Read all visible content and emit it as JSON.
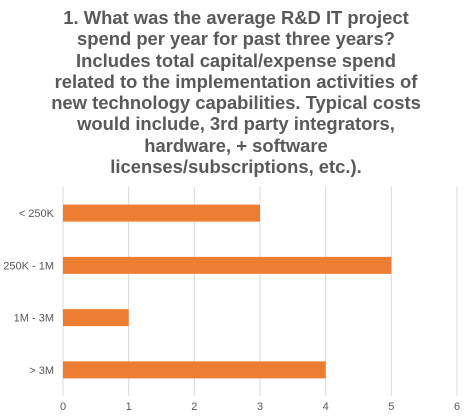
{
  "chart_data": {
    "type": "bar",
    "orientation": "horizontal",
    "title_lines": [
      "1. What was the average R&D IT project",
      "spend per year for past three years?",
      "Includes total capital/expense spend",
      "related to the implementation activities of",
      "new technology capabilities. Typical costs",
      "would include, 3rd party integrators,",
      "hardware, + software",
      "licenses/subscriptions, etc.)."
    ],
    "categories": [
      "< 250K",
      "250K - 1M",
      "1M - 3M",
      "> 3M"
    ],
    "values": [
      3,
      5,
      1,
      4
    ],
    "xlim": [
      0,
      6
    ],
    "x_ticks": [
      "0",
      "1",
      "2",
      "3",
      "4",
      "5",
      "6"
    ],
    "xlabel": "",
    "ylabel": "",
    "grid": "vertical gridlines",
    "legend": "none",
    "bar_color": "#ED7D31",
    "grid_color": "#D9D9D9",
    "text_color": "#595959"
  }
}
